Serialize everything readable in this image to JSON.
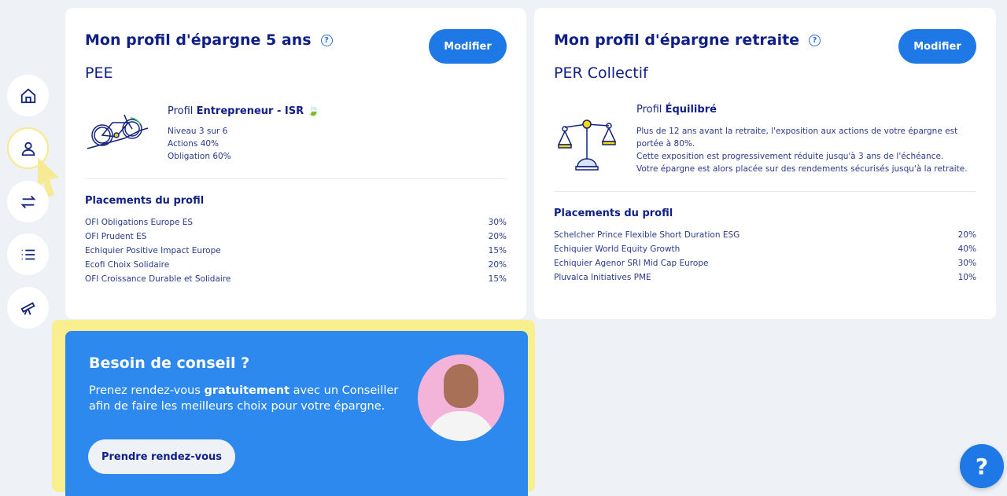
{
  "sidebar": {
    "items": [
      {
        "icon": "home-icon"
      },
      {
        "icon": "user-icon",
        "active": true
      },
      {
        "icon": "transfer-icon"
      },
      {
        "icon": "list-icon"
      },
      {
        "icon": "telescope-icon"
      }
    ]
  },
  "card1": {
    "title": "Mon profil d'épargne 5 ans",
    "subtitle": "PEE",
    "button": "Modifier",
    "profile_prefix": "Profil",
    "profile_name": "Entrepreneur",
    "profile_suffix": " - ISR",
    "lines": [
      "Niveau 3 sur 6",
      "Actions 40%",
      "Obligation 60%"
    ],
    "placements_title": "Placements du profil",
    "placements": [
      {
        "name": "OFI Obligations Europe ES",
        "pct": "30%"
      },
      {
        "name": "OFI Prudent ES",
        "pct": "20%"
      },
      {
        "name": "Echiquier Positive Impact Europe",
        "pct": "15%"
      },
      {
        "name": "Ecofi Choix Solidaire",
        "pct": "20%"
      },
      {
        "name": "OFI Croissance Durable et Solidaire",
        "pct": "15%"
      }
    ]
  },
  "card2": {
    "title": "Mon profil d'épargne retraite",
    "subtitle": "PER Collectif",
    "button": "Modifier",
    "profile_prefix": "Profil",
    "profile_name": "Équilibré",
    "lines": [
      "Plus de 12 ans avant la retraite, l'exposition aux actions de votre épargne est portée à 80%.",
      "Cette exposition est progressivement réduite jusqu'à 3 ans de l'échéance.",
      "Votre épargne est alors placée sur des rendements sécurisés jusqu'à la retraite."
    ],
    "placements_title": "Placements du profil",
    "placements": [
      {
        "name": "Schelcher Prince Flexible Short Duration ESG",
        "pct": "20%"
      },
      {
        "name": "Echiquier World Equity Growth",
        "pct": "40%"
      },
      {
        "name": "Echiquier Agenor SRI Mid Cap Europe",
        "pct": "30%"
      },
      {
        "name": "Pluvalca Initiatives PME",
        "pct": "10%"
      }
    ]
  },
  "conseil": {
    "title": "Besoin de conseil ?",
    "text_before": "Prenez rendez-vous ",
    "text_bold": "gratuitement",
    "text_after": " avec un Conseiller afin de faire les meilleurs choix pour votre épargne.",
    "button": "Prendre rendez-vous"
  },
  "help": {
    "label": "?"
  }
}
